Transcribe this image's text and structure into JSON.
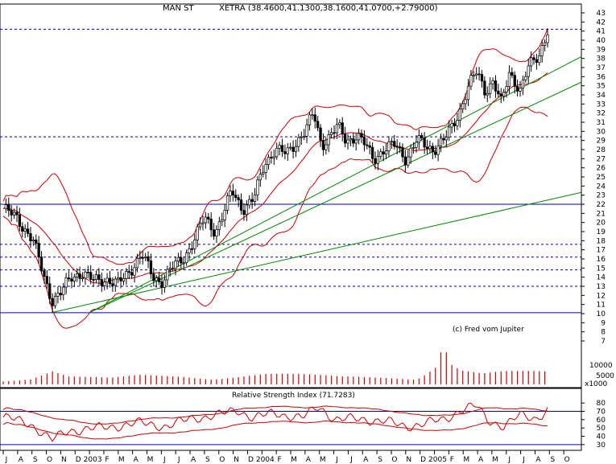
{
  "header": {
    "symbol": "MAN ST",
    "quote": "XETRA (38.4600,41.1300,38.1600,41.0700,+2.79000)"
  },
  "watermark": "(c) Fred vom Jupiter",
  "volume": {
    "unit_label": "x1000",
    "ticks": [
      "10000",
      "5000"
    ]
  },
  "rsi": {
    "title": "Relative Strength Index (71.7283)",
    "ticks": [
      "80",
      "70",
      "60",
      "50",
      "40",
      "30"
    ]
  },
  "chart_data": {
    "type": "candlestick",
    "price_axis": {
      "min": 7,
      "max": 43,
      "ticks": [
        7,
        8,
        9,
        10,
        11,
        12,
        13,
        14,
        15,
        16,
        17,
        18,
        19,
        20,
        21,
        22,
        23,
        24,
        25,
        26,
        27,
        28,
        29,
        30,
        31,
        32,
        33,
        34,
        35,
        36,
        37,
        38,
        39,
        40,
        41,
        42,
        43
      ]
    },
    "x_labels": [
      "J",
      "A",
      "S",
      "O",
      "N",
      "D",
      "2003",
      "F",
      "M",
      "A",
      "M",
      "J",
      "J",
      "A",
      "S",
      "O",
      "N",
      "D",
      "2004",
      "F",
      "M",
      "A",
      "M",
      "J",
      "J",
      "A",
      "S",
      "O",
      "N",
      "D",
      "2005",
      "F",
      "M",
      "A",
      "M",
      "J",
      "J",
      "A",
      "S",
      "O"
    ],
    "horizontal_levels_dashed": [
      41.2,
      29.4,
      17.6,
      16.2,
      14.8,
      13.0
    ],
    "horizontal_levels_solid": [
      22.0,
      10.1
    ],
    "rsi_levels": [
      70,
      30
    ],
    "trendlines": [
      {
        "from": [
          0.158,
          10.1
        ],
        "to": [
          1.0,
          38.2
        ]
      },
      {
        "from": [
          0.158,
          10.1
        ],
        "to": [
          1.0,
          35.4
        ]
      },
      {
        "from": [
          0.088,
          10.1
        ],
        "to": [
          1.0,
          23.3
        ]
      }
    ],
    "close_path": [
      [
        0.0,
        21.5
      ],
      [
        0.025,
        20.5
      ],
      [
        0.055,
        18.0
      ],
      [
        0.075,
        14.0
      ],
      [
        0.09,
        11.5
      ],
      [
        0.105,
        12.2
      ],
      [
        0.125,
        14.0
      ],
      [
        0.145,
        14.5
      ],
      [
        0.165,
        13.6
      ],
      [
        0.19,
        13.8
      ],
      [
        0.21,
        13.2
      ],
      [
        0.23,
        14.5
      ],
      [
        0.255,
        16.5
      ],
      [
        0.275,
        14.0
      ],
      [
        0.29,
        13.5
      ],
      [
        0.31,
        15.0
      ],
      [
        0.33,
        16.0
      ],
      [
        0.35,
        18.0
      ],
      [
        0.37,
        20.5
      ],
      [
        0.39,
        19.0
      ],
      [
        0.405,
        21.0
      ],
      [
        0.42,
        23.5
      ],
      [
        0.44,
        21.5
      ],
      [
        0.46,
        22.5
      ],
      [
        0.48,
        26.5
      ],
      [
        0.5,
        28.0
      ],
      [
        0.52,
        27.5
      ],
      [
        0.54,
        29.0
      ],
      [
        0.555,
        30.0
      ],
      [
        0.57,
        32.0
      ],
      [
        0.585,
        28.5
      ],
      [
        0.6,
        29.5
      ],
      [
        0.615,
        30.5
      ],
      [
        0.63,
        29.0
      ],
      [
        0.65,
        29.5
      ],
      [
        0.665,
        28.5
      ],
      [
        0.68,
        27.0
      ],
      [
        0.7,
        28.0
      ],
      [
        0.72,
        28.5
      ],
      [
        0.74,
        27.0
      ],
      [
        0.76,
        29.0
      ],
      [
        0.775,
        28.5
      ],
      [
        0.79,
        28.0
      ],
      [
        0.81,
        29.0
      ],
      [
        0.825,
        30.5
      ],
      [
        0.84,
        32.5
      ],
      [
        0.855,
        35.0
      ],
      [
        0.87,
        36.5
      ],
      [
        0.885,
        34.5
      ],
      [
        0.9,
        35.5
      ],
      [
        0.915,
        33.0
      ],
      [
        0.93,
        36.5
      ],
      [
        0.95,
        34.5
      ],
      [
        0.965,
        37.0
      ],
      [
        0.985,
        38.5
      ],
      [
        1.0,
        41.07
      ]
    ],
    "volume_path": [
      [
        0.0,
        0.15
      ],
      [
        0.05,
        0.2
      ],
      [
        0.09,
        0.45
      ],
      [
        0.12,
        0.25
      ],
      [
        0.2,
        0.2
      ],
      [
        0.25,
        0.3
      ],
      [
        0.33,
        0.3
      ],
      [
        0.4,
        0.25
      ],
      [
        0.48,
        0.35
      ],
      [
        0.56,
        0.3
      ],
      [
        0.62,
        0.25
      ],
      [
        0.7,
        0.25
      ],
      [
        0.76,
        0.25
      ],
      [
        0.81,
        0.95
      ],
      [
        0.84,
        0.5
      ],
      [
        0.88,
        0.35
      ],
      [
        0.92,
        0.4
      ],
      [
        1.0,
        0.4
      ]
    ],
    "rsi_path": [
      [
        0.0,
        63
      ],
      [
        0.05,
        55
      ],
      [
        0.09,
        35
      ],
      [
        0.12,
        47
      ],
      [
        0.18,
        50
      ],
      [
        0.25,
        56
      ],
      [
        0.3,
        52
      ],
      [
        0.35,
        62
      ],
      [
        0.4,
        66
      ],
      [
        0.43,
        72
      ],
      [
        0.46,
        62
      ],
      [
        0.5,
        68
      ],
      [
        0.55,
        62
      ],
      [
        0.58,
        76
      ],
      [
        0.61,
        60
      ],
      [
        0.66,
        61
      ],
      [
        0.7,
        58
      ],
      [
        0.74,
        52
      ],
      [
        0.78,
        56
      ],
      [
        0.81,
        60
      ],
      [
        0.84,
        72
      ],
      [
        0.87,
        76
      ],
      [
        0.89,
        60
      ],
      [
        0.92,
        52
      ],
      [
        0.95,
        65
      ],
      [
        0.98,
        62
      ],
      [
        1.0,
        71.7
      ]
    ]
  }
}
